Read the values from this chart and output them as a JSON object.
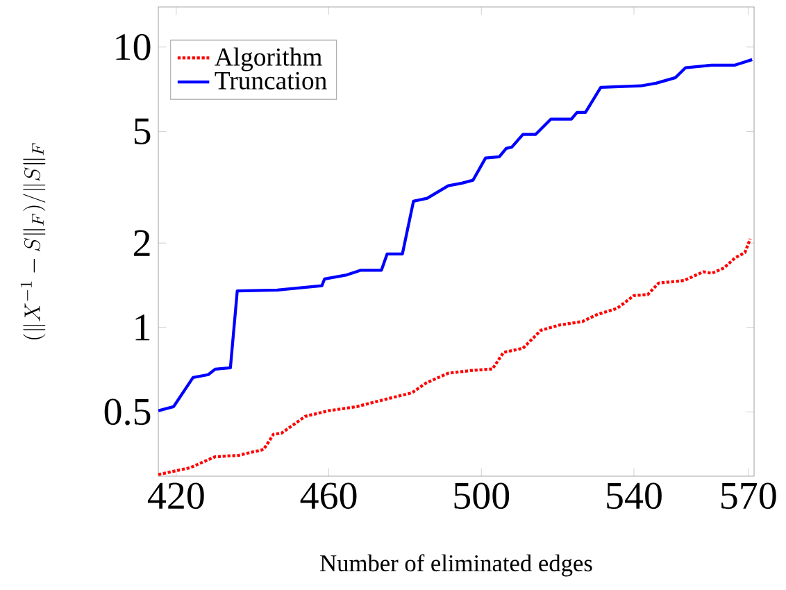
{
  "chart_data": {
    "type": "line",
    "xlabel": "Number of eliminated edges",
    "ylabel": "(\\|X^{-1}-S\\|_F)/\\|S\\|_F",
    "log": "y",
    "xlim": [
      415.3,
      571.5
    ],
    "ylim": [
      0.295,
      13.9
    ],
    "xticks": [
      420,
      460,
      500,
      540,
      570
    ],
    "yticks": [
      0.5,
      1,
      2,
      5,
      10
    ],
    "legend": "top left",
    "grid": false,
    "marker": "none",
    "series": [
      {
        "name": "Algorithm",
        "color": "#ff0000",
        "line_style": "dotted",
        "x": [
          415.3,
          423.6,
          430.2,
          436.4,
          439.3,
          442.9,
          445.5,
          447.6,
          453.8,
          460.0,
          467.3,
          474.5,
          481.8,
          485.5,
          491.3,
          497.5,
          502.9,
          505.8,
          510.9,
          515.6,
          520.4,
          526.5,
          530.2,
          535.6,
          540.0,
          543.6,
          546.5,
          553.1,
          558.2,
          560.4,
          563.6,
          566.5,
          569.1,
          570.5
        ],
        "values": [
          0.299,
          0.316,
          0.346,
          0.35,
          0.358,
          0.367,
          0.416,
          0.42,
          0.482,
          0.505,
          0.522,
          0.553,
          0.585,
          0.634,
          0.687,
          0.703,
          0.711,
          0.815,
          0.843,
          0.977,
          1.02,
          1.05,
          1.11,
          1.17,
          1.3,
          1.31,
          1.44,
          1.47,
          1.58,
          1.56,
          1.63,
          1.77,
          1.85,
          2.07
        ]
      },
      {
        "name": "Truncation",
        "color": "#0000ff",
        "line_style": "solid",
        "x": [
          415.3,
          419.3,
          424.4,
          428.4,
          430.2,
          434.2,
          436.0,
          446.5,
          458.2,
          458.9,
          464.7,
          468.4,
          473.8,
          475.3,
          479.3,
          482.2,
          485.8,
          491.3,
          494.9,
          497.8,
          501.1,
          504.7,
          506.5,
          508.0,
          510.9,
          514.2,
          518.2,
          523.6,
          525.1,
          527.3,
          531.3,
          541.8,
          545.8,
          550.9,
          553.5,
          560.4,
          566.5,
          571.0
        ],
        "values": [
          0.505,
          0.522,
          0.663,
          0.679,
          0.71,
          0.718,
          1.35,
          1.36,
          1.41,
          1.49,
          1.54,
          1.6,
          1.6,
          1.83,
          1.83,
          2.82,
          2.89,
          3.2,
          3.27,
          3.35,
          4.02,
          4.06,
          4.35,
          4.4,
          4.88,
          4.88,
          5.53,
          5.53,
          5.85,
          5.85,
          7.18,
          7.27,
          7.43,
          7.78,
          8.43,
          8.62,
          8.62,
          9.02
        ]
      }
    ]
  }
}
